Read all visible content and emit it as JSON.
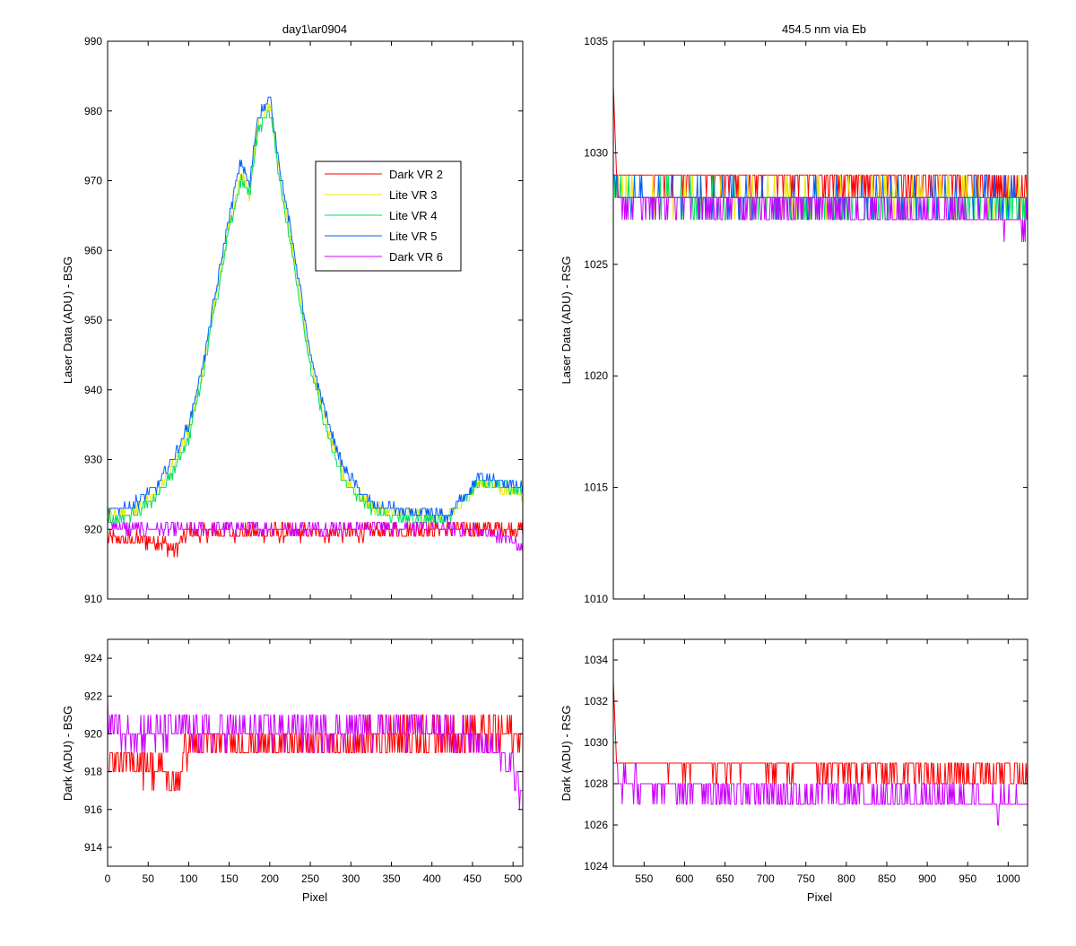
{
  "colors": {
    "dark_vr2": "#ff0000",
    "lite_vr3": "#e8e800",
    "lite_vr4": "#00e060",
    "lite_vr5": "#0060ff",
    "dark_vr6": "#cc00ff"
  },
  "chart_data": [
    {
      "type": "line",
      "title": "day1\\ar0904",
      "xlabel": "",
      "ylabel": "Laser Data (ADU) - BSG",
      "xlim": [
        0,
        512
      ],
      "ylim": [
        910,
        990
      ],
      "xticks": [
        0,
        50,
        100,
        150,
        200,
        250,
        300,
        350,
        400,
        450,
        500
      ],
      "yticks": [
        910,
        920,
        930,
        940,
        950,
        960,
        970,
        980,
        990
      ],
      "show_xtick_labels": false,
      "legend": {
        "placement": "upper-middle",
        "entries": [
          "Dark VR 2",
          "Lite VR 3",
          "Lite VR 4",
          "Lite VR 5",
          "Dark VR 6"
        ]
      },
      "series": [
        {
          "name": "Dark VR 2",
          "color_key": "dark_vr2",
          "noise": 1.2,
          "points": [
            [
              0,
              919
            ],
            [
              10,
              918.5
            ],
            [
              40,
              918.5
            ],
            [
              70,
              918
            ],
            [
              80,
              917
            ],
            [
              90,
              918
            ],
            [
              100,
              919.5
            ],
            [
              150,
              919.5
            ],
            [
              300,
              919.5
            ],
            [
              400,
              920
            ],
            [
              512,
              920
            ]
          ]
        },
        {
          "name": "Dark VR 6",
          "color_key": "dark_vr6",
          "noise": 0.9,
          "points": [
            [
              0,
              921
            ],
            [
              20,
              920
            ],
            [
              400,
              920.3
            ],
            [
              430,
              920
            ],
            [
              450,
              920
            ],
            [
              480,
              919
            ],
            [
              500,
              918.5
            ],
            [
              512,
              917
            ]
          ]
        },
        {
          "name": "Lite VR 3",
          "color_key": "lite_vr3",
          "noise": 0.7,
          "points": [
            [
              0,
              922
            ],
            [
              30,
              922.5
            ],
            [
              60,
              925
            ],
            [
              80,
              929
            ],
            [
              100,
              934
            ],
            [
              120,
              944
            ],
            [
              130,
              952
            ],
            [
              135,
              954
            ],
            [
              150,
              964
            ],
            [
              165,
              971
            ],
            [
              175,
              968
            ],
            [
              185,
              978
            ],
            [
              200,
              981
            ],
            [
              215,
              969
            ],
            [
              230,
              959
            ],
            [
              250,
              944
            ],
            [
              270,
              935
            ],
            [
              290,
              928
            ],
            [
              310,
              925
            ],
            [
              330,
              923
            ],
            [
              350,
              922.5
            ],
            [
              380,
              922
            ],
            [
              420,
              921.8
            ],
            [
              440,
              924
            ],
            [
              460,
              926.5
            ],
            [
              480,
              926
            ],
            [
              512,
              925
            ]
          ]
        },
        {
          "name": "Lite VR 4",
          "color_key": "lite_vr4",
          "noise": 0.7,
          "points": [
            [
              0,
              921.5
            ],
            [
              30,
              922
            ],
            [
              60,
              924.5
            ],
            [
              80,
              928
            ],
            [
              100,
              933
            ],
            [
              120,
              943.5
            ],
            [
              130,
              951
            ],
            [
              135,
              953
            ],
            [
              150,
              963
            ],
            [
              165,
              970
            ],
            [
              175,
              968
            ],
            [
              185,
              977
            ],
            [
              200,
              980
            ],
            [
              215,
              968
            ],
            [
              230,
              958
            ],
            [
              250,
              943
            ],
            [
              270,
              934
            ],
            [
              290,
              927
            ],
            [
              310,
              924.5
            ],
            [
              330,
              922.5
            ],
            [
              350,
              922
            ],
            [
              380,
              921.5
            ],
            [
              420,
              921.5
            ],
            [
              440,
              924.5
            ],
            [
              460,
              927
            ],
            [
              480,
              926.5
            ],
            [
              512,
              925.5
            ]
          ]
        },
        {
          "name": "Lite VR 5",
          "color_key": "lite_vr5",
          "noise": 0.7,
          "points": [
            [
              0,
              922.5
            ],
            [
              30,
              923.5
            ],
            [
              60,
              926
            ],
            [
              80,
              930
            ],
            [
              100,
              935
            ],
            [
              120,
              945
            ],
            [
              130,
              952
            ],
            [
              135,
              955
            ],
            [
              150,
              965
            ],
            [
              165,
              973
            ],
            [
              175,
              969
            ],
            [
              185,
              979
            ],
            [
              200,
              982
            ],
            [
              215,
              970
            ],
            [
              230,
              960
            ],
            [
              250,
              945
            ],
            [
              270,
              936
            ],
            [
              290,
              929
            ],
            [
              310,
              925.5
            ],
            [
              330,
              923.5
            ],
            [
              350,
              923
            ],
            [
              380,
              922.3
            ],
            [
              420,
              922
            ],
            [
              440,
              925
            ],
            [
              460,
              927.5
            ],
            [
              480,
              927
            ],
            [
              512,
              926
            ]
          ]
        }
      ]
    },
    {
      "type": "line",
      "title": "454.5 nm via Eb",
      "xlabel": "",
      "ylabel": "Laser Data (ADU) - RSG",
      "xlim": [
        512,
        1024
      ],
      "ylim": [
        1010,
        1035
      ],
      "xticks": [
        550,
        600,
        650,
        700,
        750,
        800,
        850,
        900,
        950,
        1000
      ],
      "yticks": [
        1010,
        1015,
        1020,
        1025,
        1030,
        1035
      ],
      "show_xtick_labels": false,
      "series": [
        {
          "name": "Dark VR 2",
          "color_key": "dark_vr2",
          "noise": 0.5,
          "points": [
            [
              512,
              1033
            ],
            [
              516,
              1029
            ],
            [
              1024,
              1028.5
            ]
          ]
        },
        {
          "name": "Lite VR 3",
          "color_key": "lite_vr3",
          "noise": 0.6,
          "points": [
            [
              512,
              1029
            ],
            [
              520,
              1028
            ],
            [
              1024,
              1028
            ]
          ]
        },
        {
          "name": "Lite VR 4",
          "color_key": "lite_vr4",
          "noise": 0.6,
          "points": [
            [
              512,
              1029
            ],
            [
              520,
              1028
            ],
            [
              1024,
              1027.8
            ]
          ]
        },
        {
          "name": "Lite VR 5",
          "color_key": "lite_vr5",
          "noise": 0.6,
          "points": [
            [
              512,
              1029
            ],
            [
              520,
              1028
            ],
            [
              1024,
              1028
            ]
          ]
        },
        {
          "name": "Dark VR 6",
          "color_key": "dark_vr6",
          "noise": 0.6,
          "points": [
            [
              512,
              1029
            ],
            [
              520,
              1028
            ],
            [
              1024,
              1027
            ]
          ]
        }
      ]
    },
    {
      "type": "line",
      "title": "",
      "xlabel": "Pixel",
      "ylabel": "Dark (ADU) - BSG",
      "xlim": [
        0,
        512
      ],
      "ylim": [
        913,
        925
      ],
      "xticks": [
        0,
        50,
        100,
        150,
        200,
        250,
        300,
        350,
        400,
        450,
        500
      ],
      "yticks": [
        914,
        916,
        918,
        920,
        922,
        924
      ],
      "show_xtick_labels": true,
      "series": [
        {
          "name": "Dark VR 2",
          "color_key": "dark_vr2",
          "noise": 1.0,
          "points": [
            [
              0,
              919
            ],
            [
              10,
              918.5
            ],
            [
              40,
              918.5
            ],
            [
              70,
              918
            ],
            [
              80,
              917
            ],
            [
              90,
              918
            ],
            [
              100,
              919.5
            ],
            [
              150,
              919.5
            ],
            [
              300,
              919.5
            ],
            [
              400,
              920
            ],
            [
              512,
              920
            ]
          ]
        },
        {
          "name": "Dark VR 6",
          "color_key": "dark_vr6",
          "noise": 0.8,
          "points": [
            [
              0,
              921
            ],
            [
              20,
              920
            ],
            [
              400,
              920.3
            ],
            [
              430,
              920
            ],
            [
              450,
              920
            ],
            [
              480,
              919
            ],
            [
              500,
              918
            ],
            [
              512,
              916.5
            ]
          ]
        }
      ]
    },
    {
      "type": "line",
      "title": "",
      "xlabel": "Pixel",
      "ylabel": "Dark (ADU) - RSG",
      "xlim": [
        512,
        1024
      ],
      "ylim": [
        1024,
        1035
      ],
      "xticks": [
        550,
        600,
        650,
        700,
        750,
        800,
        850,
        900,
        950,
        1000
      ],
      "yticks": [
        1024,
        1026,
        1028,
        1030,
        1032,
        1034
      ],
      "show_xtick_labels": true,
      "series": [
        {
          "name": "Dark VR 2",
          "color_key": "dark_vr2",
          "noise": 0.5,
          "points": [
            [
              512,
              1033
            ],
            [
              516,
              1029
            ],
            [
              1024,
              1028.5
            ]
          ]
        },
        {
          "name": "Dark VR 6",
          "color_key": "dark_vr6",
          "noise": 0.6,
          "points": [
            [
              512,
              1029
            ],
            [
              520,
              1028
            ],
            [
              1024,
              1027
            ]
          ]
        }
      ]
    }
  ]
}
